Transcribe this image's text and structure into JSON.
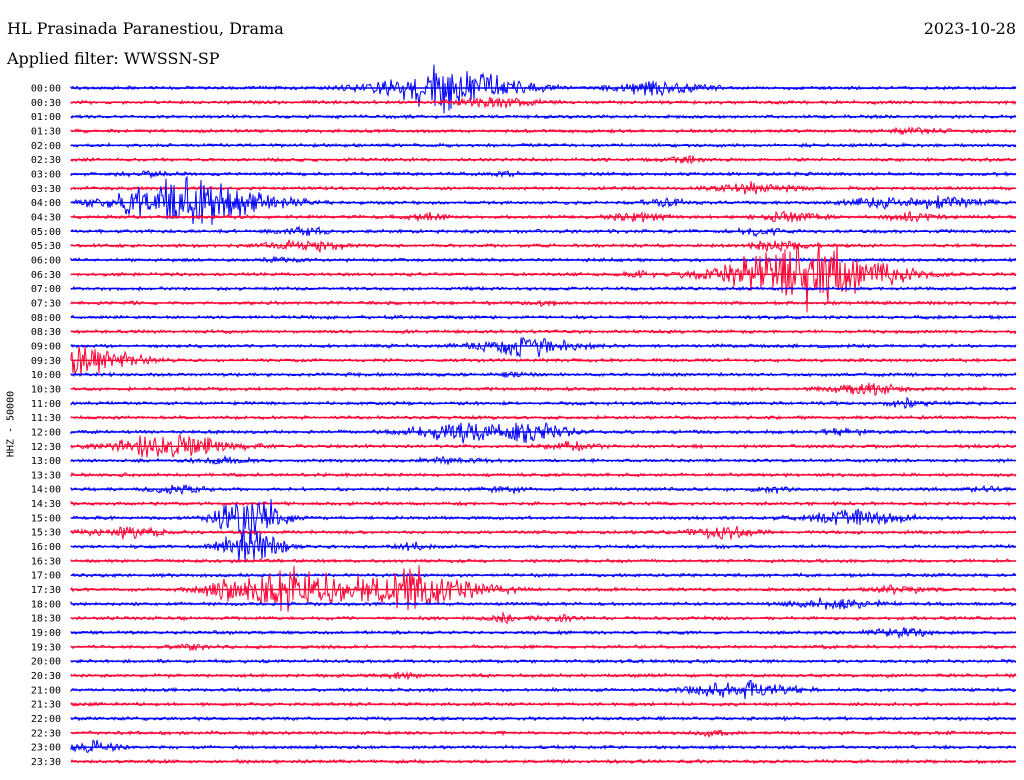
{
  "header": {
    "station": "HL Prasinada Paranestiou, Drama",
    "date": "2023-10-28",
    "filter": "Applied filter: WWSSN-SP"
  },
  "channel_label": "HHZ - 50000",
  "colors": {
    "even_hour_trace": "#0000ff",
    "odd_half_trace": "#ff0033",
    "text": "#000000",
    "background": "#ffffff"
  },
  "traces": [
    {
      "label": "00:00",
      "events": [
        [
          40,
          28,
          0.14
        ],
        [
          62,
          9,
          0.1
        ]
      ]
    },
    {
      "label": "00:30",
      "events": [
        [
          45,
          7,
          0.08
        ]
      ]
    },
    {
      "label": "01:00",
      "events": []
    },
    {
      "label": "01:30",
      "events": [
        [
          90,
          4,
          0.05
        ]
      ]
    },
    {
      "label": "02:00",
      "events": []
    },
    {
      "label": "02:30",
      "events": [
        [
          65,
          4,
          0.04
        ]
      ]
    },
    {
      "label": "03:00",
      "events": [
        [
          8,
          5,
          0.05
        ],
        [
          46,
          3,
          0.03
        ]
      ]
    },
    {
      "label": "03:30",
      "events": [
        [
          72,
          7,
          0.08
        ]
      ]
    },
    {
      "label": "04:00",
      "events": [
        [
          13,
          34,
          0.15
        ],
        [
          63,
          6,
          0.05
        ],
        [
          85,
          7,
          0.06
        ],
        [
          93,
          9,
          0.08
        ]
      ]
    },
    {
      "label": "04:30",
      "events": [
        [
          38,
          4,
          0.05
        ],
        [
          60,
          6,
          0.05
        ],
        [
          76,
          7,
          0.06
        ],
        [
          89,
          5,
          0.05
        ]
      ]
    },
    {
      "label": "05:00",
      "events": [
        [
          25,
          5,
          0.05
        ],
        [
          73,
          5,
          0.05
        ]
      ]
    },
    {
      "label": "05:30",
      "events": [
        [
          25,
          8,
          0.08
        ],
        [
          75,
          7,
          0.06
        ]
      ]
    },
    {
      "label": "06:00",
      "events": [
        [
          22,
          3,
          0.04
        ]
      ]
    },
    {
      "label": "06:30",
      "events": [
        [
          78,
          45,
          0.16
        ],
        [
          60,
          4,
          0.04
        ]
      ]
    },
    {
      "label": "07:00",
      "events": []
    },
    {
      "label": "07:30",
      "events": [
        [
          50,
          3,
          0.03
        ]
      ]
    },
    {
      "label": "08:00",
      "events": []
    },
    {
      "label": "08:30",
      "events": []
    },
    {
      "label": "09:00",
      "events": [
        [
          48,
          13,
          0.1
        ]
      ]
    },
    {
      "label": "09:30",
      "events": [
        [
          1,
          25,
          0.1
        ]
      ]
    },
    {
      "label": "10:00",
      "events": [
        [
          47,
          3,
          0.04
        ]
      ]
    },
    {
      "label": "10:30",
      "events": [
        [
          84,
          8,
          0.07
        ]
      ]
    },
    {
      "label": "11:00",
      "events": [
        [
          88,
          5,
          0.05
        ]
      ]
    },
    {
      "label": "11:30",
      "events": []
    },
    {
      "label": "12:00",
      "events": [
        [
          41,
          12,
          0.1
        ],
        [
          49,
          11,
          0.08
        ],
        [
          82,
          4,
          0.05
        ]
      ]
    },
    {
      "label": "12:30",
      "events": [
        [
          8,
          11,
          0.1
        ],
        [
          13,
          10,
          0.1
        ],
        [
          53,
          5,
          0.05
        ]
      ]
    },
    {
      "label": "13:00",
      "events": [
        [
          16,
          4,
          0.05
        ],
        [
          40,
          4,
          0.05
        ]
      ]
    },
    {
      "label": "13:30",
      "events": []
    },
    {
      "label": "14:00",
      "events": [
        [
          11,
          6,
          0.05
        ],
        [
          46,
          4,
          0.04
        ],
        [
          74,
          4,
          0.04
        ],
        [
          97,
          4,
          0.04
        ]
      ]
    },
    {
      "label": "14:30",
      "events": []
    },
    {
      "label": "15:00",
      "events": [
        [
          19,
          40,
          0.06
        ],
        [
          83,
          11,
          0.1
        ]
      ]
    },
    {
      "label": "15:30",
      "events": [
        [
          6,
          7,
          0.08
        ],
        [
          69,
          8,
          0.07
        ]
      ]
    },
    {
      "label": "16:00",
      "events": [
        [
          19,
          25,
          0.06
        ],
        [
          36,
          4,
          0.04
        ]
      ]
    },
    {
      "label": "16:30",
      "events": []
    },
    {
      "label": "17:00",
      "events": []
    },
    {
      "label": "17:30",
      "events": [
        [
          23,
          26,
          0.14
        ],
        [
          36,
          26,
          0.14
        ],
        [
          16,
          4,
          0.04
        ],
        [
          88,
          5,
          0.06
        ]
      ]
    },
    {
      "label": "18:00",
      "events": [
        [
          81,
          8,
          0.08
        ]
      ]
    },
    {
      "label": "18:30",
      "events": [
        [
          46,
          5,
          0.05
        ],
        [
          52,
          4,
          0.04
        ]
      ]
    },
    {
      "label": "19:00",
      "events": [
        [
          88,
          6,
          0.06
        ]
      ]
    },
    {
      "label": "19:30",
      "events": [
        [
          13,
          3,
          0.04
        ]
      ]
    },
    {
      "label": "20:00",
      "events": []
    },
    {
      "label": "20:30",
      "events": [
        [
          35,
          3,
          0.04
        ]
      ]
    },
    {
      "label": "21:00",
      "events": [
        [
          71,
          13,
          0.1
        ]
      ]
    },
    {
      "label": "21:30",
      "events": []
    },
    {
      "label": "22:00",
      "events": []
    },
    {
      "label": "22:30",
      "events": [
        [
          68,
          3,
          0.04
        ]
      ]
    },
    {
      "label": "23:00",
      "events": [
        [
          2,
          8,
          0.06
        ]
      ]
    },
    {
      "label": "23:30",
      "events": []
    }
  ]
}
